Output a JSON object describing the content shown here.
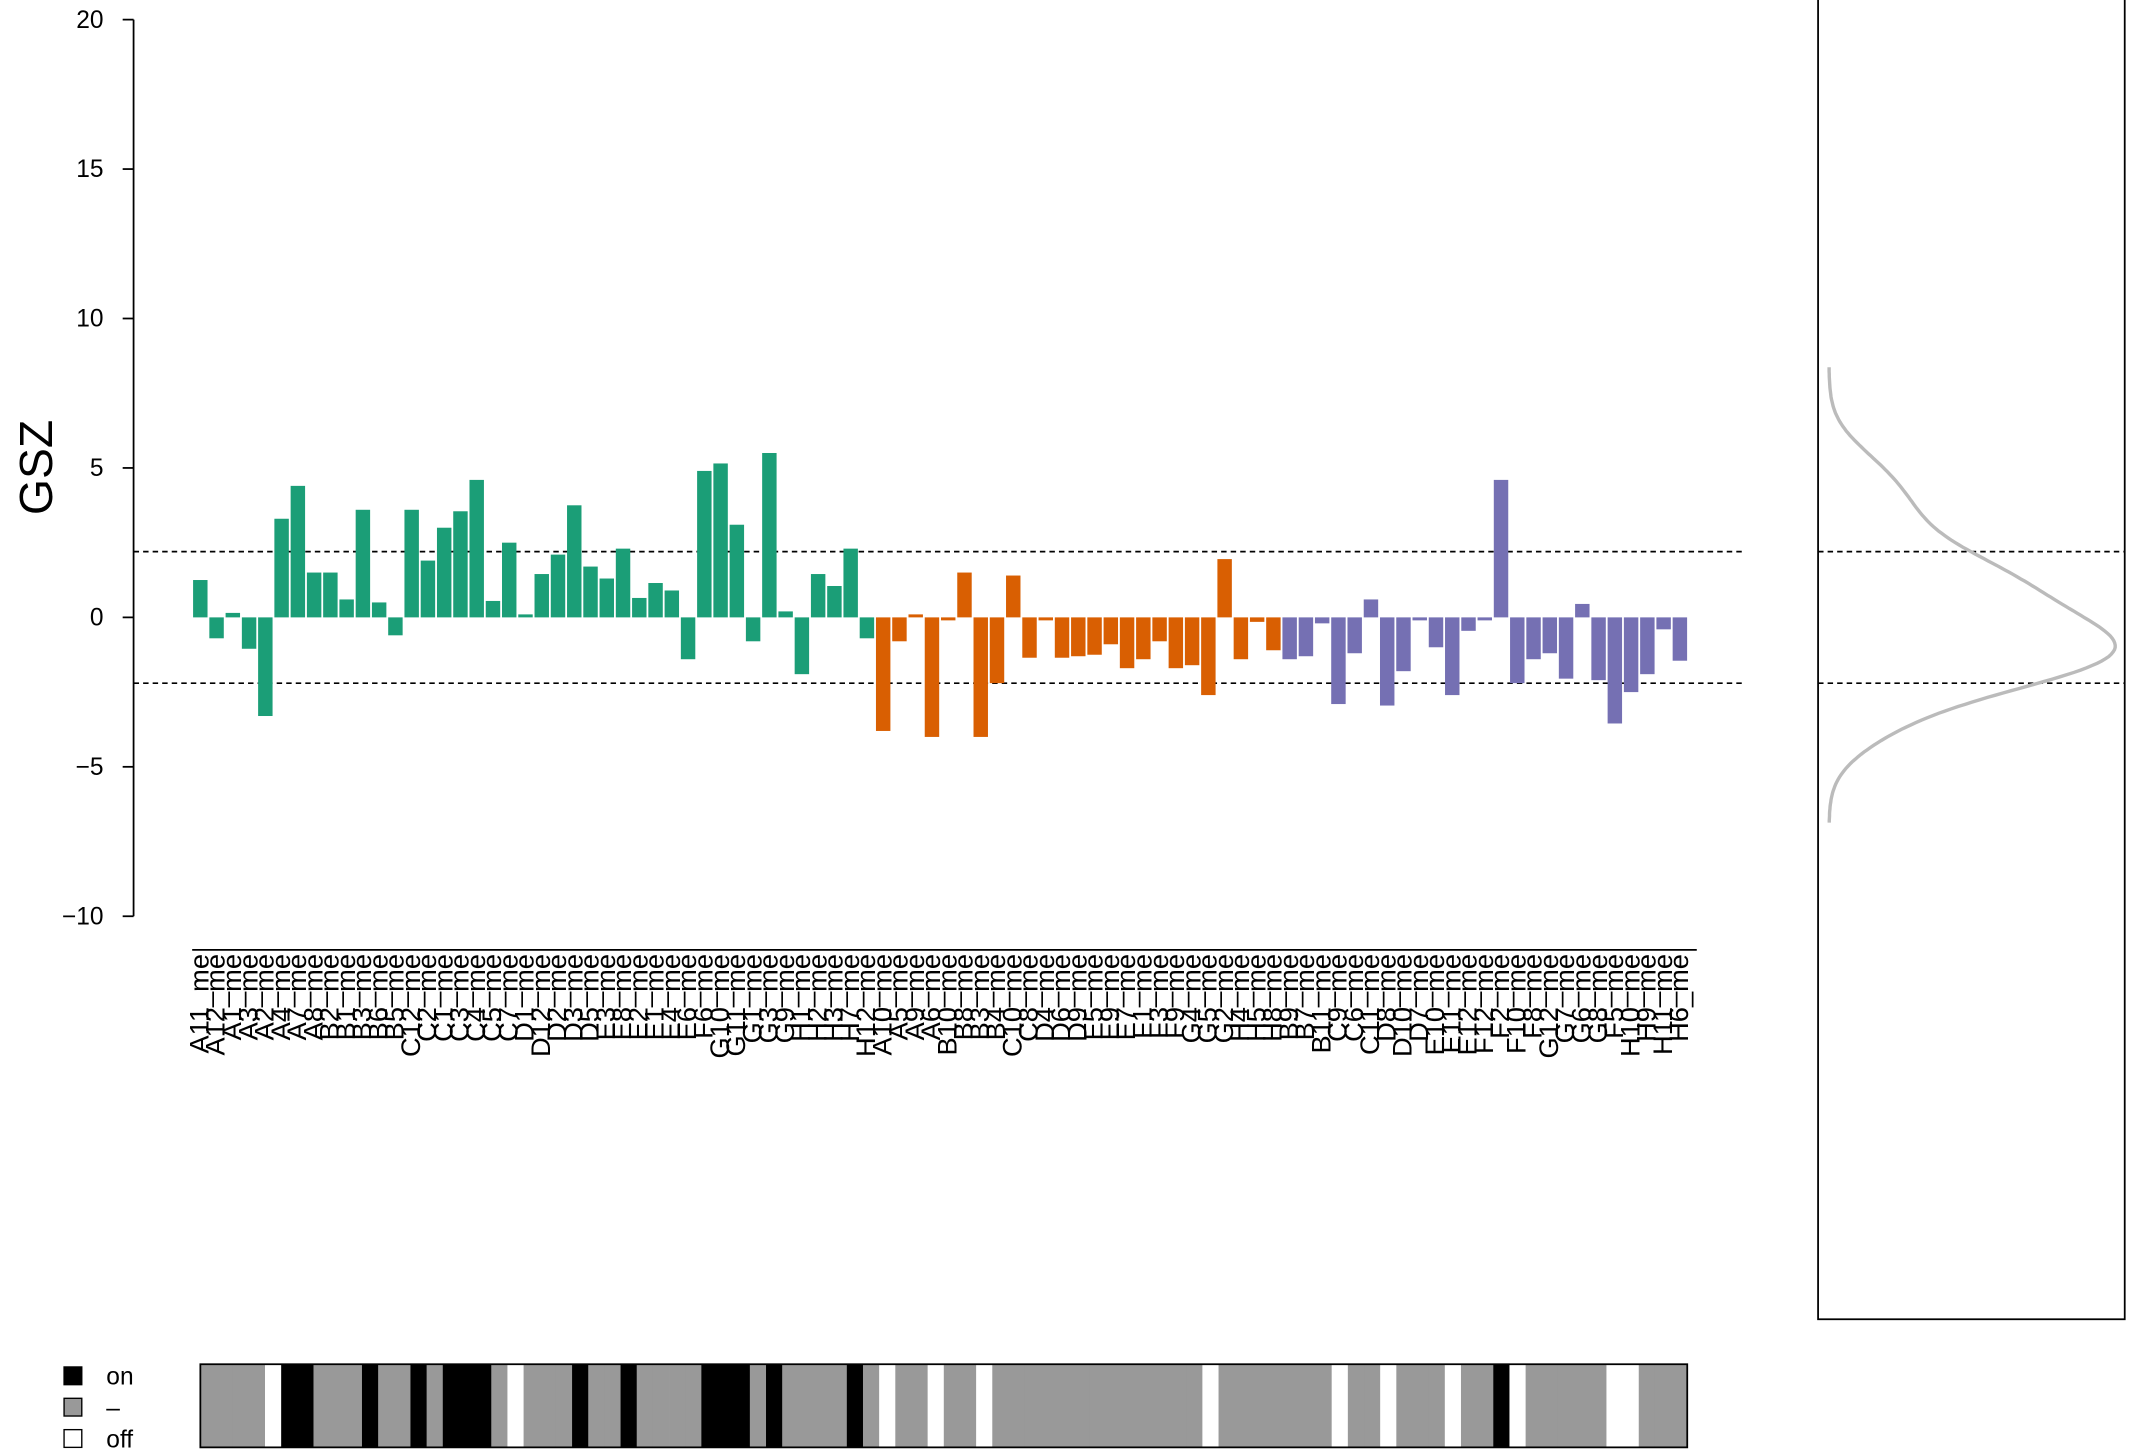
{
  "chart_data": {
    "type": "bar",
    "y_label": "GSZ",
    "categories": [
      "A11_me",
      "A12_me",
      "A1_me",
      "A3_me",
      "A2_me",
      "A4_me",
      "A7_me",
      "A8_me",
      "B2_me",
      "B1_me",
      "B3_me",
      "B6_me",
      "B5_me",
      "C12_me",
      "C2_me",
      "C1_me",
      "C3_me",
      "C4_me",
      "C5_me",
      "C7_me",
      "D1_me",
      "D12_me",
      "D2_me",
      "D3_me",
      "D5_me",
      "E3_me",
      "E8_me",
      "E2_me",
      "E1_me",
      "E4_me",
      "E6_me",
      "F6_me",
      "G10_me",
      "G11_me",
      "G1_me",
      "G3_me",
      "G9_me",
      "H1_me",
      "H2_me",
      "H3_me",
      "H7_me",
      "H12_me",
      "A10_me",
      "A5_me",
      "A9_me",
      "A6_me",
      "B10_me",
      "B8_me",
      "B3_me",
      "B4_me",
      "C10_me",
      "C8_me",
      "D4_me",
      "D6_me",
      "D9_me",
      "E5_me",
      "E9_me",
      "E7_me",
      "F1_me",
      "F3_me",
      "F9_me",
      "G4_me",
      "G5_me",
      "G2_me",
      "H4_me",
      "H5_me",
      "H8_me",
      "B9_me",
      "B7_me",
      "B11_me",
      "C9_me",
      "C6_me",
      "C11_me",
      "D8_me",
      "D10_me",
      "D7_me",
      "E10_me",
      "E11_me",
      "E12_me",
      "F12_me",
      "F2_me",
      "F10_me",
      "F8_me",
      "G12_me",
      "G7_me",
      "G6_me",
      "G8_me",
      "F5_me",
      "H10_me",
      "H9_me",
      "H11_me",
      "H6_me"
    ],
    "series": [
      {
        "color": "#1b9e77",
        "values": [
          1.25,
          -0.7,
          0.15,
          -1.05,
          -3.3,
          3.3,
          4.4,
          1.5,
          1.5,
          0.6,
          3.6,
          0.5,
          -0.6,
          3.6,
          1.9,
          3.0,
          3.55,
          4.6,
          0.55,
          2.5,
          0.1,
          1.45,
          2.1,
          3.75,
          1.7,
          1.3,
          2.3,
          0.65,
          1.15,
          0.9,
          -1.4,
          4.9,
          5.15,
          3.1,
          -0.8,
          5.5,
          0.2,
          -1.9,
          1.45,
          1.05,
          2.3,
          -0.7,
          null,
          null,
          null,
          null,
          null,
          null,
          null,
          null,
          null,
          null,
          null,
          null,
          null,
          null,
          null,
          null,
          null,
          null,
          null,
          null,
          null,
          null,
          null,
          null,
          null,
          null,
          null,
          null,
          null,
          null,
          null,
          null,
          null,
          null,
          null,
          null,
          null,
          null,
          null,
          null,
          null,
          null,
          null,
          null,
          null,
          null,
          null,
          null,
          null,
          null
        ]
      },
      {
        "color": "#d95f02",
        "values": [
          null,
          null,
          null,
          null,
          null,
          null,
          null,
          null,
          null,
          null,
          null,
          null,
          null,
          null,
          null,
          null,
          null,
          null,
          null,
          null,
          null,
          null,
          null,
          null,
          null,
          null,
          null,
          null,
          null,
          null,
          null,
          null,
          null,
          null,
          null,
          null,
          null,
          null,
          null,
          null,
          null,
          null,
          -3.8,
          -0.8,
          0.1,
          -4.0,
          -0.1,
          1.5,
          -4.0,
          -2.2,
          1.4,
          -1.35,
          -0.1,
          -1.35,
          -1.3,
          -1.25,
          -0.9,
          -1.7,
          -1.4,
          -0.8,
          -1.7,
          -1.6,
          -2.6,
          1.95,
          -1.4,
          -0.15,
          -1.1,
          null,
          null,
          null,
          null,
          null,
          null,
          null,
          null,
          null,
          null,
          null,
          null,
          null,
          null,
          null,
          null,
          null,
          null,
          null,
          null,
          null,
          null,
          null,
          null,
          null
        ]
      },
      {
        "color": "#7570b3",
        "values": [
          null,
          null,
          null,
          null,
          null,
          null,
          null,
          null,
          null,
          null,
          null,
          null,
          null,
          null,
          null,
          null,
          null,
          null,
          null,
          null,
          null,
          null,
          null,
          null,
          null,
          null,
          null,
          null,
          null,
          null,
          null,
          null,
          null,
          null,
          null,
          null,
          null,
          null,
          null,
          null,
          null,
          null,
          null,
          null,
          null,
          null,
          null,
          null,
          null,
          null,
          null,
          null,
          null,
          null,
          null,
          null,
          null,
          null,
          null,
          null,
          null,
          null,
          null,
          null,
          null,
          null,
          null,
          -1.4,
          -1.3,
          -0.2,
          -2.9,
          -1.2,
          0.6,
          -2.95,
          -1.8,
          -0.1,
          -1.0,
          -2.6,
          -0.45,
          -0.1,
          4.6,
          -2.2,
          -1.4,
          -1.2,
          -2.05,
          0.45,
          -2.1,
          -3.55,
          -2.5,
          -1.9,
          -0.4,
          -1.45
        ]
      }
    ],
    "ylim": [
      -10,
      20
    ],
    "yticks": [
      {
        "value": -10,
        "label": "−10"
      },
      {
        "value": -5,
        "label": "−5"
      },
      0,
      5,
      10,
      15,
      20
    ],
    "thresholds": [
      2.2,
      -2.2
    ],
    "density_color": "#bbbbbb",
    "legend": [
      {
        "label": "on",
        "color": "#000000"
      },
      {
        "label": "–",
        "color": "#999999"
      },
      {
        "label": "off",
        "color": "#ffffff"
      }
    ],
    "status": [
      "–",
      "–",
      "–",
      "–",
      "off",
      "on",
      "on",
      "–",
      "–",
      "–",
      "on",
      "–",
      "–",
      "on",
      "–",
      "on",
      "on",
      "on",
      "–",
      "off",
      "–",
      "–",
      "–",
      "on",
      "–",
      "–",
      "on",
      "–",
      "–",
      "–",
      "–",
      "on",
      "on",
      "on",
      "–",
      "on",
      "–",
      "–",
      "–",
      "–",
      "on",
      "–",
      "off",
      "–",
      "–",
      "off",
      "–",
      "–",
      "off",
      "–",
      "–",
      "–",
      "–",
      "–",
      "–",
      "–",
      "–",
      "–",
      "–",
      "–",
      "–",
      "–",
      "off",
      "–",
      "–",
      "–",
      "–",
      "–",
      "–",
      "–",
      "off",
      "–",
      "–",
      "off",
      "–",
      "–",
      "–",
      "off",
      "–",
      "–",
      "on",
      "off",
      "–",
      "–",
      "–",
      "–",
      "–",
      "off",
      "off",
      "–",
      "–",
      "–"
    ]
  }
}
